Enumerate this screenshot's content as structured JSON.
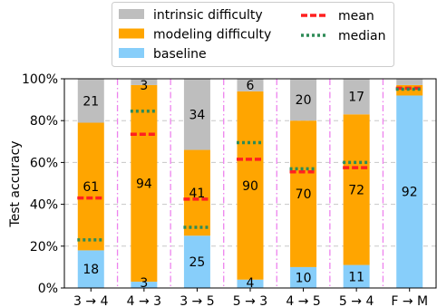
{
  "chart_data": {
    "type": "bar",
    "stacked": true,
    "categories": [
      "3 → 4",
      "4 → 3",
      "3 → 5",
      "5 → 3",
      "4 → 5",
      "5 → 4",
      "F → M"
    ],
    "ylabel": "Test accuracy",
    "ylim": [
      0,
      100
    ],
    "yticks": [
      "0%",
      "20%",
      "40%",
      "60%",
      "80%",
      "100%"
    ],
    "grid": "horizontal dashed",
    "legend_placement": "top",
    "series": [
      {
        "name": "baseline",
        "color": "#87cefa",
        "values": [
          18,
          3,
          25,
          4,
          10,
          11,
          92
        ]
      },
      {
        "name": "modeling difficulty",
        "color": "#ffa500",
        "values": [
          61,
          94,
          41,
          90,
          70,
          72,
          5
        ]
      },
      {
        "name": "intrinsic difficulty",
        "color": "#bebebe",
        "values": [
          21,
          3,
          34,
          6,
          20,
          17,
          3
        ]
      }
    ],
    "bar_labels": [
      [
        "18",
        "61",
        "21"
      ],
      [
        "3",
        "94",
        "3"
      ],
      [
        "25",
        "41",
        "34"
      ],
      [
        "4",
        "90",
        "6"
      ],
      [
        "10",
        "70",
        "20"
      ],
      [
        "11",
        "72",
        "17"
      ],
      [
        "92",
        "",
        ""
      ]
    ],
    "mean": {
      "name": "mean",
      "color": "#ff2020",
      "values": [
        43,
        73.5,
        42.5,
        61.5,
        55.5,
        57.5,
        95.5
      ]
    },
    "median": {
      "name": "median",
      "color": "#2e8b57",
      "values": [
        23,
        84.5,
        29,
        69.5,
        57,
        60,
        95
      ]
    },
    "separator_color": "#ee82ee",
    "separators_after": [
      0,
      1,
      2,
      3,
      4,
      5
    ]
  }
}
